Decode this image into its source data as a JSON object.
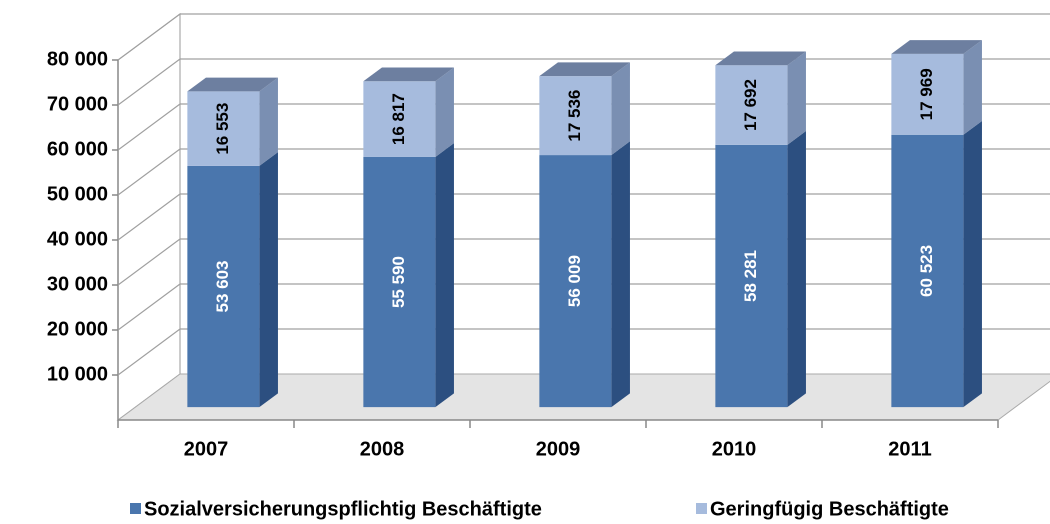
{
  "chart_data": {
    "type": "bar3d_stacked",
    "categories": [
      "2007",
      "2008",
      "2009",
      "2010",
      "2011"
    ],
    "series": [
      {
        "name": "Sozialversicherungspflichtig Beschäftigte",
        "color": "#4a76ad",
        "values": [
          53603,
          55590,
          56009,
          58281,
          60523
        ],
        "value_labels": [
          "53 603",
          "55 590",
          "56 009",
          "58 281",
          "60 523"
        ]
      },
      {
        "name": "Geringfügig Beschäftigte",
        "color": "#a6bbdd",
        "values": [
          16553,
          16817,
          17536,
          17692,
          17969
        ],
        "value_labels": [
          "16 553",
          "16 817",
          "17 536",
          "17 692",
          "17 969"
        ]
      }
    ],
    "ylim": [
      0,
      80000
    ],
    "yticks": [
      {
        "value": 10000,
        "label": "10 000"
      },
      {
        "value": 20000,
        "label": "20 000"
      },
      {
        "value": 30000,
        "label": "30 000"
      },
      {
        "value": 40000,
        "label": "40 000"
      },
      {
        "value": 50000,
        "label": "50 000"
      },
      {
        "value": 60000,
        "label": "60 000"
      },
      {
        "value": 70000,
        "label": "70 000"
      },
      {
        "value": 80000,
        "label": "80 000"
      }
    ],
    "grid": true,
    "legend": "bottom"
  }
}
